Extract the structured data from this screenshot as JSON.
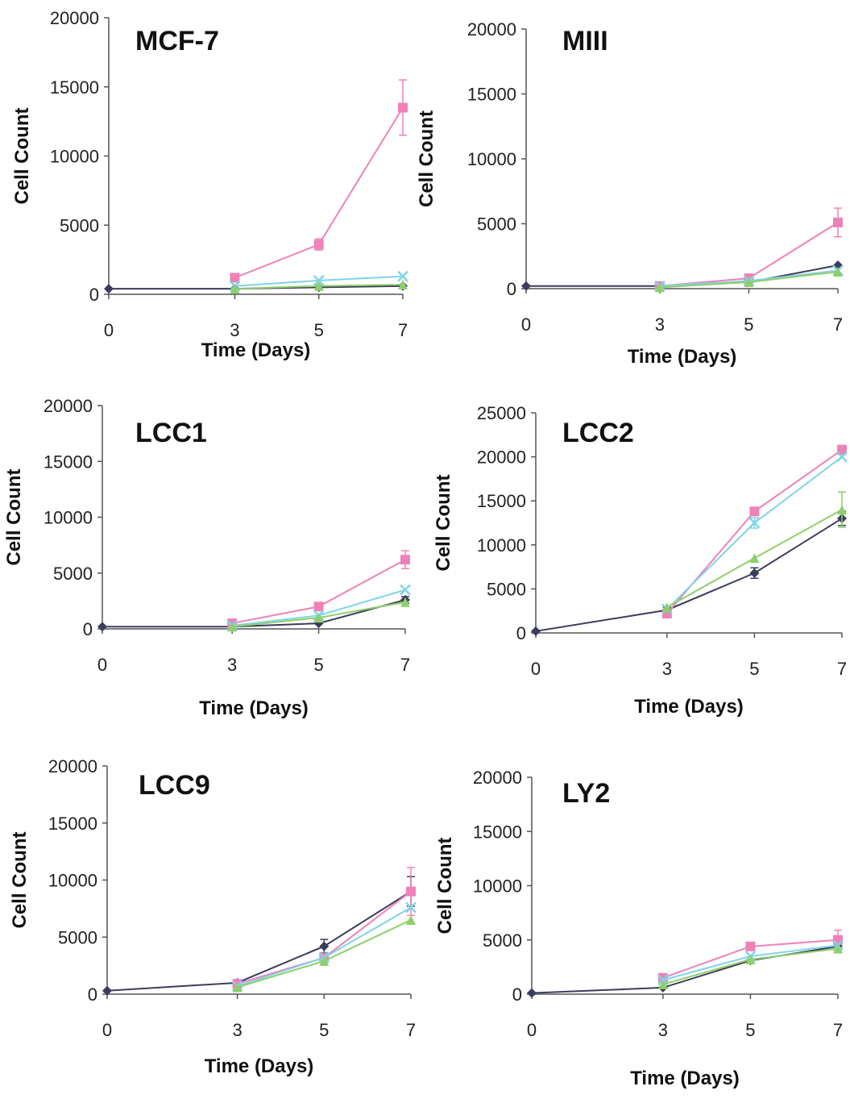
{
  "chart_data": [
    {
      "type": "line",
      "title": "MCF-7",
      "xlabel": "Time (Days)",
      "ylabel": "Cell Count",
      "x": [
        0,
        3,
        5,
        7
      ],
      "x_ticks": [
        "0",
        "3",
        "5",
        "7"
      ],
      "ylim": [
        0,
        20000
      ],
      "y_ticks": [
        "0",
        "5000",
        "10000",
        "15000",
        "20000"
      ],
      "series": [
        {
          "color": "#3b3d5c",
          "marker": "diamond",
          "values": [
            400,
            400,
            500,
            600
          ],
          "errors": [
            0,
            0,
            0,
            0
          ]
        },
        {
          "color": "#ee82b8",
          "marker": "square",
          "values": [
            null,
            1200,
            3600,
            13500
          ],
          "errors": [
            0,
            100,
            400,
            2000
          ]
        },
        {
          "color": "#7fd4e8",
          "marker": "x",
          "values": [
            null,
            600,
            1000,
            1300
          ],
          "errors": [
            0,
            0,
            0,
            0
          ]
        },
        {
          "color": "#8fcf6a",
          "marker": "triangle",
          "values": [
            null,
            400,
            600,
            700
          ],
          "errors": [
            0,
            0,
            0,
            0
          ]
        }
      ]
    },
    {
      "type": "line",
      "title": "MIII",
      "xlabel": "Time (Days)",
      "ylabel": "Cell Count",
      "x": [
        0,
        3,
        5,
        7
      ],
      "x_ticks": [
        "0",
        "3",
        "5",
        "7"
      ],
      "ylim": [
        0,
        20000
      ],
      "y_ticks": [
        "0",
        "5000",
        "10000",
        "15000",
        "20000"
      ],
      "series": [
        {
          "color": "#3b3d5c",
          "marker": "diamond",
          "values": [
            200,
            200,
            500,
            1800
          ],
          "errors": [
            0,
            0,
            0,
            0
          ]
        },
        {
          "color": "#ee82b8",
          "marker": "square",
          "values": [
            null,
            200,
            800,
            5100
          ],
          "errors": [
            0,
            0,
            100,
            1100
          ]
        },
        {
          "color": "#7fd4e8",
          "marker": "x",
          "values": [
            null,
            200,
            600,
            1400
          ],
          "errors": [
            0,
            0,
            0,
            0
          ]
        },
        {
          "color": "#8fcf6a",
          "marker": "triangle",
          "values": [
            null,
            100,
            500,
            1300
          ],
          "errors": [
            0,
            0,
            0,
            0
          ]
        }
      ]
    },
    {
      "type": "line",
      "title": "LCC1",
      "xlabel": "Time (Days)",
      "ylabel": "Cell Count",
      "x": [
        0,
        3,
        5,
        7
      ],
      "x_ticks": [
        "0",
        "3",
        "5",
        "7"
      ],
      "ylim": [
        0,
        20000
      ],
      "y_ticks": [
        "0",
        "5000",
        "10000",
        "15000",
        "20000"
      ],
      "series": [
        {
          "color": "#3b3d5c",
          "marker": "diamond",
          "values": [
            200,
            200,
            500,
            2600
          ],
          "errors": [
            0,
            0,
            0,
            300
          ]
        },
        {
          "color": "#ee82b8",
          "marker": "square",
          "values": [
            null,
            500,
            2000,
            6200
          ],
          "errors": [
            0,
            0,
            0,
            800
          ]
        },
        {
          "color": "#7fd4e8",
          "marker": "x",
          "values": [
            null,
            300,
            1200,
            3500
          ],
          "errors": [
            0,
            0,
            0,
            0
          ]
        },
        {
          "color": "#8fcf6a",
          "marker": "triangle",
          "values": [
            null,
            200,
            1000,
            2400
          ],
          "errors": [
            0,
            0,
            0,
            0
          ]
        }
      ]
    },
    {
      "type": "line",
      "title": "LCC2",
      "xlabel": "Time (Days)",
      "ylabel": "Cell Count",
      "x": [
        0,
        3,
        5,
        7
      ],
      "x_ticks": [
        "0",
        "3",
        "5",
        "7"
      ],
      "ylim": [
        0,
        25000
      ],
      "y_ticks": [
        "0",
        "5000",
        "10000",
        "15000",
        "20000",
        "25000"
      ],
      "series": [
        {
          "color": "#3b3d5c",
          "marker": "diamond",
          "values": [
            200,
            2600,
            6800,
            13000
          ],
          "errors": [
            0,
            300,
            600,
            800
          ]
        },
        {
          "color": "#ee82b8",
          "marker": "square",
          "values": [
            null,
            2200,
            13800,
            20800
          ],
          "errors": [
            0,
            0,
            0,
            500
          ]
        },
        {
          "color": "#7fd4e8",
          "marker": "x",
          "values": [
            null,
            2700,
            12500,
            20000
          ],
          "errors": [
            0,
            0,
            600,
            0
          ]
        },
        {
          "color": "#8fcf6a",
          "marker": "triangle",
          "values": [
            null,
            2900,
            8500,
            14000
          ],
          "errors": [
            0,
            0,
            0,
            2000
          ]
        }
      ]
    },
    {
      "type": "line",
      "title": "LCC9",
      "xlabel": "Time (Days)",
      "ylabel": "Cell Count",
      "x": [
        0,
        3,
        5,
        7
      ],
      "x_ticks": [
        "0",
        "3",
        "5",
        "7"
      ],
      "ylim": [
        0,
        20000
      ],
      "y_ticks": [
        "0",
        "5000",
        "10000",
        "15000",
        "20000"
      ],
      "series": [
        {
          "color": "#3b3d5c",
          "marker": "diamond",
          "values": [
            300,
            1000,
            4200,
            9000
          ],
          "errors": [
            0,
            0,
            600,
            1300
          ]
        },
        {
          "color": "#ee82b8",
          "marker": "square",
          "values": [
            null,
            900,
            3200,
            9000
          ],
          "errors": [
            0,
            0,
            0,
            2100
          ]
        },
        {
          "color": "#7fd4e8",
          "marker": "x",
          "values": [
            null,
            700,
            3200,
            7600
          ],
          "errors": [
            0,
            0,
            0,
            0
          ]
        },
        {
          "color": "#8fcf6a",
          "marker": "triangle",
          "values": [
            null,
            600,
            2900,
            6500
          ],
          "errors": [
            0,
            0,
            0,
            0
          ]
        }
      ]
    },
    {
      "type": "line",
      "title": "LY2",
      "xlabel": "Time (Days)",
      "ylabel": "Cell Count",
      "x": [
        0,
        3,
        5,
        7
      ],
      "x_ticks": [
        "0",
        "3",
        "5",
        "7"
      ],
      "ylim": [
        0,
        20000
      ],
      "y_ticks": [
        "0",
        "5000",
        "10000",
        "15000",
        "20000"
      ],
      "series": [
        {
          "color": "#3b3d5c",
          "marker": "diamond",
          "values": [
            100,
            600,
            3100,
            4400
          ],
          "errors": [
            0,
            0,
            0,
            0
          ]
        },
        {
          "color": "#ee82b8",
          "marker": "square",
          "values": [
            null,
            1500,
            4400,
            5000
          ],
          "errors": [
            0,
            0,
            0,
            900
          ]
        },
        {
          "color": "#7fd4e8",
          "marker": "x",
          "values": [
            null,
            1300,
            3500,
            4500
          ],
          "errors": [
            0,
            0,
            0,
            0
          ]
        },
        {
          "color": "#8fcf6a",
          "marker": "triangle",
          "values": [
            null,
            900,
            3200,
            4200
          ],
          "errors": [
            0,
            0,
            0,
            0
          ]
        }
      ]
    }
  ]
}
